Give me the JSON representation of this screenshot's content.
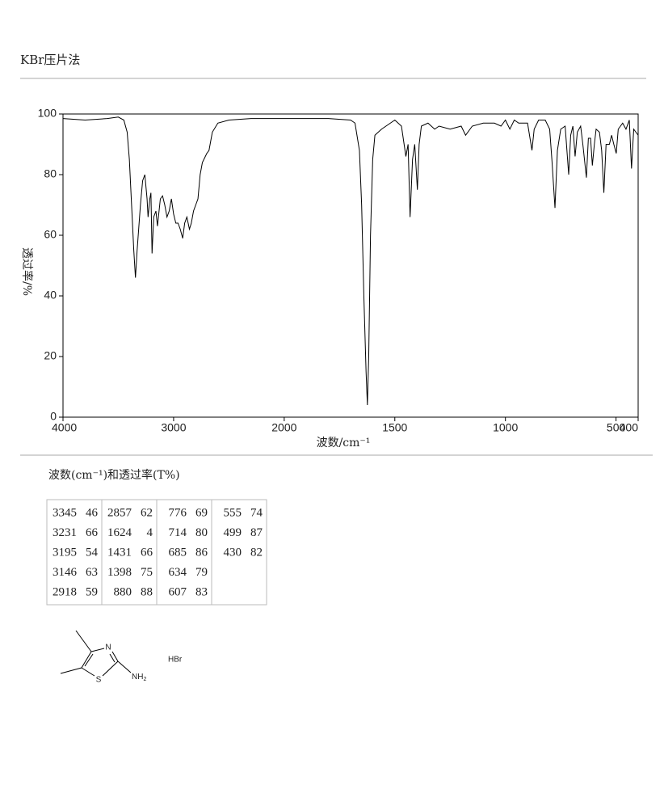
{
  "header": {
    "title": "KBr压片法"
  },
  "chart_data": {
    "type": "line",
    "xlabel": "波数/cm⁻¹",
    "ylabel": "透过率/%",
    "x": [
      4000,
      3800,
      3600,
      3500,
      3450,
      3420,
      3400,
      3380,
      3360,
      3345,
      3330,
      3300,
      3280,
      3260,
      3240,
      3231,
      3215,
      3205,
      3195,
      3180,
      3160,
      3146,
      3120,
      3100,
      3080,
      3060,
      3040,
      3020,
      3000,
      2980,
      2960,
      2940,
      2918,
      2900,
      2880,
      2857,
      2840,
      2820,
      2800,
      2780,
      2760,
      2740,
      2700,
      2680,
      2650,
      2600,
      2500,
      2300,
      2000,
      1800,
      1700,
      1680,
      1660,
      1650,
      1640,
      1630,
      1624,
      1618,
      1610,
      1600,
      1590,
      1560,
      1520,
      1500,
      1470,
      1450,
      1440,
      1431,
      1420,
      1410,
      1398,
      1390,
      1380,
      1350,
      1320,
      1300,
      1250,
      1200,
      1180,
      1150,
      1100,
      1050,
      1020,
      1000,
      980,
      960,
      940,
      900,
      880,
      870,
      850,
      820,
      800,
      790,
      776,
      765,
      750,
      730,
      714,
      705,
      695,
      685,
      675,
      660,
      650,
      634,
      625,
      615,
      607,
      598,
      590,
      575,
      565,
      555,
      545,
      530,
      520,
      510,
      499,
      490,
      470,
      455,
      440,
      430,
      420,
      410,
      400
    ],
    "series": [
      {
        "color": "#000000",
        "values": [
          98.5,
          98,
          98.5,
          99,
          98,
          94,
          85,
          70,
          55,
          46,
          55,
          70,
          78,
          80,
          72,
          66,
          72,
          74,
          54,
          66,
          68,
          63,
          72,
          73,
          70,
          66,
          68,
          72,
          67,
          64,
          64,
          62,
          59,
          64,
          66,
          62,
          64,
          68,
          70,
          72,
          80,
          84,
          87,
          88,
          94,
          97,
          98,
          98.5,
          98.5,
          98.5,
          98,
          97,
          88,
          70,
          40,
          15,
          4,
          20,
          60,
          85,
          93,
          95,
          97,
          98,
          96,
          86,
          90,
          66,
          85,
          90,
          75,
          90,
          96,
          97,
          95,
          96,
          95,
          96,
          93,
          96,
          97,
          97,
          96,
          98,
          95,
          98,
          97,
          97,
          88,
          95,
          98,
          98,
          95,
          85,
          69,
          88,
          95,
          96,
          80,
          93,
          96,
          86,
          94,
          96,
          90,
          79,
          92,
          92,
          83,
          90,
          95,
          94,
          88,
          74,
          90,
          90,
          93,
          90,
          87,
          95,
          97,
          95,
          98,
          82,
          95,
          94,
          93
        ]
      }
    ],
    "xlim": [
      4000,
      400
    ],
    "x_scale_break": 2000,
    "xticks": [
      4000,
      3000,
      2000,
      1500,
      1000,
      500,
      400
    ],
    "ylim": [
      0,
      100
    ],
    "yticks": [
      0,
      20,
      40,
      60,
      80,
      100
    ]
  },
  "caption": "波数(cm⁻¹)和透过率(T%)",
  "table": {
    "columns": [
      [
        [
          3345,
          46
        ],
        [
          3231,
          66
        ],
        [
          3195,
          54
        ],
        [
          3146,
          63
        ],
        [
          2918,
          59
        ]
      ],
      [
        [
          2857,
          62
        ],
        [
          1624,
          4
        ],
        [
          1431,
          66
        ],
        [
          1398,
          75
        ],
        [
          880,
          88
        ]
      ],
      [
        [
          776,
          69
        ],
        [
          714,
          80
        ],
        [
          685,
          86
        ],
        [
          634,
          79
        ],
        [
          607,
          83
        ]
      ],
      [
        [
          555,
          74
        ],
        [
          499,
          87
        ],
        [
          430,
          82
        ]
      ]
    ]
  },
  "structure": {
    "atoms": [
      "N",
      "S"
    ],
    "amine": {
      "label": "NH",
      "subscript": "2"
    },
    "salt": "HBr"
  }
}
